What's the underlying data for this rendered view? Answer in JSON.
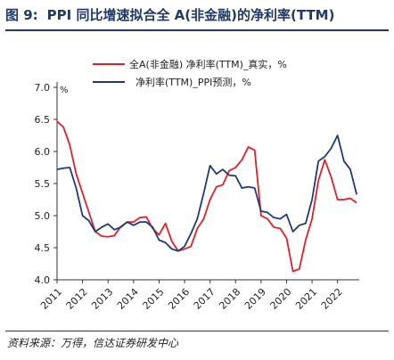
{
  "header": {
    "figure_no": "图 9:",
    "title": "PPI 同比增速拟合全 A(非金融)的净利率(TTM)"
  },
  "footer": {
    "source": "资料来源：万得，信达证券研发中心"
  },
  "colors": {
    "title": "#1f3a68",
    "net_margin_line": "#e0202a",
    "ppi_line": "#1f3a78"
  },
  "chart_data": {
    "type": "line",
    "y_unit_label": "%",
    "ylim": [
      4.0,
      7.0
    ],
    "yticks": [
      "4.0",
      "4.5",
      "5.0",
      "5.5",
      "6.0",
      "6.5",
      "7.0"
    ],
    "xlim": [
      2011.0,
      2022.85
    ],
    "xticks": [
      "2011",
      "2012",
      "2013",
      "2014",
      "2015",
      "2016",
      "2017",
      "2018",
      "2019",
      "2020",
      "2021",
      "2022"
    ],
    "legend_position": "top",
    "grid": false,
    "series": [
      {
        "name": "全A(非金融) 净利率(TTM)_真实，%",
        "color": "#e0202a",
        "points": [
          [
            2011.0,
            6.47
          ],
          [
            2011.25,
            6.38
          ],
          [
            2011.5,
            6.1
          ],
          [
            2011.75,
            5.65
          ],
          [
            2012.0,
            5.35
          ],
          [
            2012.25,
            5.05
          ],
          [
            2012.5,
            4.75
          ],
          [
            2012.75,
            4.68
          ],
          [
            2013.0,
            4.67
          ],
          [
            2013.25,
            4.69
          ],
          [
            2013.5,
            4.83
          ],
          [
            2013.75,
            4.9
          ],
          [
            2014.0,
            4.9
          ],
          [
            2014.25,
            4.97
          ],
          [
            2014.5,
            4.98
          ],
          [
            2014.75,
            4.8
          ],
          [
            2015.0,
            4.7
          ],
          [
            2015.25,
            4.88
          ],
          [
            2015.5,
            4.6
          ],
          [
            2015.75,
            4.45
          ],
          [
            2016.0,
            4.48
          ],
          [
            2016.25,
            4.52
          ],
          [
            2016.5,
            4.8
          ],
          [
            2016.75,
            4.95
          ],
          [
            2017.0,
            5.25
          ],
          [
            2017.25,
            5.45
          ],
          [
            2017.5,
            5.48
          ],
          [
            2017.75,
            5.7
          ],
          [
            2018.0,
            5.75
          ],
          [
            2018.25,
            5.87
          ],
          [
            2018.5,
            6.07
          ],
          [
            2018.75,
            6.02
          ],
          [
            2019.0,
            5.0
          ],
          [
            2019.25,
            4.95
          ],
          [
            2019.5,
            4.82
          ],
          [
            2019.75,
            4.8
          ],
          [
            2020.0,
            4.65
          ],
          [
            2020.25,
            4.13
          ],
          [
            2020.5,
            4.17
          ],
          [
            2020.75,
            4.62
          ],
          [
            2021.0,
            4.95
          ],
          [
            2021.25,
            5.55
          ],
          [
            2021.5,
            5.87
          ],
          [
            2021.75,
            5.6
          ],
          [
            2022.0,
            5.25
          ],
          [
            2022.25,
            5.25
          ],
          [
            2022.5,
            5.27
          ],
          [
            2022.75,
            5.2
          ]
        ]
      },
      {
        "name": "净利率(TTM)_PPI预测，%",
        "color": "#1f3a78",
        "points": [
          [
            2011.0,
            5.72
          ],
          [
            2011.25,
            5.74
          ],
          [
            2011.5,
            5.75
          ],
          [
            2011.75,
            5.43
          ],
          [
            2012.0,
            5.0
          ],
          [
            2012.25,
            4.92
          ],
          [
            2012.5,
            4.75
          ],
          [
            2012.75,
            4.82
          ],
          [
            2013.0,
            4.87
          ],
          [
            2013.25,
            4.78
          ],
          [
            2013.5,
            4.82
          ],
          [
            2013.75,
            4.9
          ],
          [
            2014.0,
            4.85
          ],
          [
            2014.25,
            4.9
          ],
          [
            2014.5,
            4.9
          ],
          [
            2014.75,
            4.82
          ],
          [
            2015.0,
            4.62
          ],
          [
            2015.25,
            4.58
          ],
          [
            2015.5,
            4.48
          ],
          [
            2015.75,
            4.45
          ],
          [
            2016.0,
            4.52
          ],
          [
            2016.25,
            4.72
          ],
          [
            2016.5,
            4.95
          ],
          [
            2016.75,
            5.35
          ],
          [
            2017.0,
            5.78
          ],
          [
            2017.25,
            5.65
          ],
          [
            2017.5,
            5.72
          ],
          [
            2017.75,
            5.63
          ],
          [
            2018.0,
            5.62
          ],
          [
            2018.25,
            5.43
          ],
          [
            2018.5,
            5.45
          ],
          [
            2018.75,
            5.43
          ],
          [
            2019.0,
            5.07
          ],
          [
            2019.25,
            5.05
          ],
          [
            2019.5,
            4.97
          ],
          [
            2019.75,
            4.95
          ],
          [
            2020.0,
            5.02
          ],
          [
            2020.25,
            4.75
          ],
          [
            2020.5,
            4.85
          ],
          [
            2020.75,
            4.88
          ],
          [
            2021.0,
            5.25
          ],
          [
            2021.25,
            5.85
          ],
          [
            2021.5,
            5.92
          ],
          [
            2021.75,
            6.05
          ],
          [
            2022.0,
            6.25
          ],
          [
            2022.25,
            5.85
          ],
          [
            2022.5,
            5.72
          ],
          [
            2022.75,
            5.33
          ]
        ]
      }
    ]
  }
}
